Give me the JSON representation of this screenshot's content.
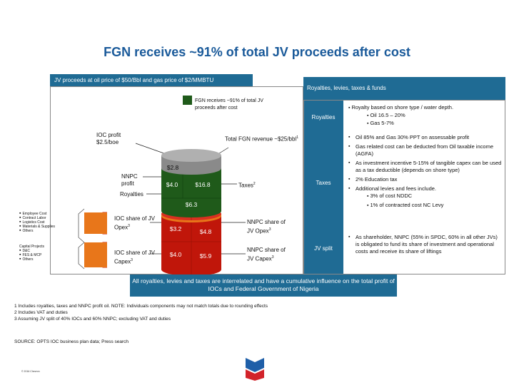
{
  "title": "FGN receives ~91% of total JV proceeds after cost",
  "jv_header": "JV proceeds at oil price of $50/Bbl and gas price of $2/MMBTU",
  "right_header": "Royalties, levies, taxes & funds",
  "legend_green": "FGN receives ~91% of total JV proceeds after cost",
  "ioc_profit": "IOC profit $2.5/boe",
  "total_fgn": "Total FGN revenue ~$25/bbl",
  "total_fgn_sup": "1",
  "nnpc_profit": "NNPC profit",
  "royalties_left": "Royalties",
  "taxes_label": "Taxes",
  "taxes_sup": "2",
  "ioc_opex": "IOC share of JV Opex",
  "ioc_opex_sup": "3",
  "ioc_capex": "IOC share of JV Capex",
  "ioc_capex_sup": "3",
  "nnpc_opex": "NNPC share of JV Opex",
  "nnpc_opex_sup": "3",
  "nnpc_capex": "NNPC share of JV Capex",
  "nnpc_capex_sup": "3",
  "values": {
    "ioc_profit_top": "$2.8",
    "nnpc_profit": "$4.0",
    "taxes": "$16.8",
    "royalties": "$6.3",
    "ioc_opex": "$3.2",
    "nnpc_opex": "$4.8",
    "ioc_capex": "$4.0",
    "nnpc_capex": "$5.9"
  },
  "opex_items": [
    "Employee Cost",
    "Contract Labor",
    "Logistics Cost",
    "Materials & Supplies",
    "Others"
  ],
  "capex_heading": "Capital Projects",
  "capex_items": [
    "D&C",
    "FES & MCP",
    "Others"
  ],
  "right_sections": {
    "royalties_label": "Royalties",
    "royalties_main": "Royalty based on shore type / water depth.",
    "royalties_sub": [
      "Oil 16.5 – 20%",
      "Gas 5-7%"
    ],
    "taxes_label": "Taxes",
    "taxes_items": [
      "Oil 85% and Gas 30% PPT on assessable profit",
      "Gas related cost can be deducted from Oil taxable income (AGFA)",
      "As investment incentive 5-15% of tangible capex can be used as a tax deductible (depends on shore type)",
      "2% Education tax",
      "Additional levies and fees include."
    ],
    "taxes_sub": [
      "3% of cost NDDC",
      "1% of contracted cost NC Levy"
    ],
    "jv_split_label": "JV split",
    "jv_split_text": "As shareholder, NNPC (55% in SPDC, 60% in all other JVs) is obligated to fund its share of investment and operational costs and receive its share of liftings"
  },
  "callout": "All royalties, levies and taxes are interrelated and have a cumulative influence on the total profit of IOCs and Federal Government of Nigeria",
  "footnotes": [
    "1 Includes royalties, taxes and NNPC profit oil. NOTE: Individuals components may not match totals due to rounding effects",
    "2 Includes VAT and duties",
    "3 Assuming JV split of 40% IOCs and 60% NNPC; excluding VAT and duties"
  ],
  "source": "SOURCE: OPTS IOC business plan data; Press search",
  "copyright": "© 2016 Chevron",
  "colors": {
    "accent": "#1f6b94",
    "title": "#1a5a9a",
    "green": "#1f5a1a",
    "red": "#c0160a",
    "orange": "#e8761a"
  }
}
